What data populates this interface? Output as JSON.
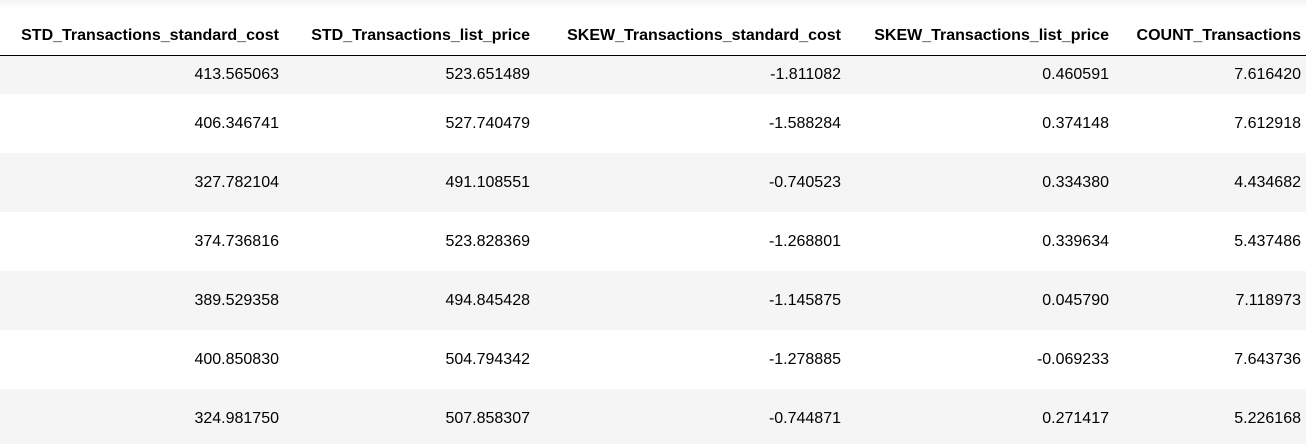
{
  "table": {
    "columns": [
      "STD_Transactions_standard_cost",
      "STD_Transactions_list_price",
      "SKEW_Transactions_standard_cost",
      "SKEW_Transactions_list_price",
      "COUNT_Transactions"
    ],
    "rows": [
      [
        "413.565063",
        "523.651489",
        "-1.811082",
        "0.460591",
        "7.616420"
      ],
      [
        "406.346741",
        "527.740479",
        "-1.588284",
        "0.374148",
        "7.612918"
      ],
      [
        "327.782104",
        "491.108551",
        "-0.740523",
        "0.334380",
        "4.434682"
      ],
      [
        "374.736816",
        "523.828369",
        "-1.268801",
        "0.339634",
        "5.437486"
      ],
      [
        "389.529358",
        "494.845428",
        "-1.145875",
        "0.045790",
        "7.118973"
      ],
      [
        "400.850830",
        "504.794342",
        "-1.278885",
        "-0.069233",
        "7.643736"
      ],
      [
        "324.981750",
        "507.858307",
        "-0.744871",
        "0.271417",
        "5.226168"
      ]
    ]
  },
  "colors": {
    "stripe": "#f5f5f5",
    "background": "#ffffff",
    "header_rule": "#000000"
  }
}
